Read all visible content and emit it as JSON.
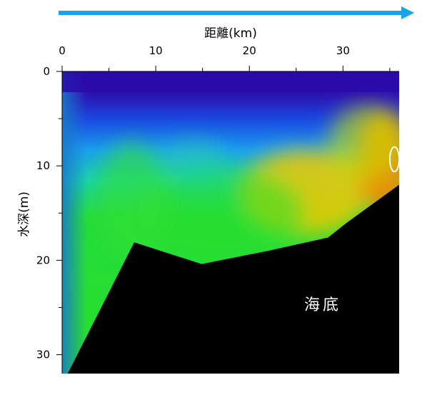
{
  "chart_data": {
    "type": "heatmap",
    "title": "",
    "xlabel": "距離(km)",
    "ylabel": "水深(m)",
    "x_axis_position": "top",
    "y_axis_inverted": true,
    "xlim": [
      0,
      36
    ],
    "ylim": [
      0,
      32
    ],
    "x_ticks": [
      0,
      10,
      20,
      30
    ],
    "y_ticks": [
      0,
      10,
      20,
      30
    ],
    "direction_arrow": {
      "color": "#1aa3e6",
      "direction": "right"
    },
    "seabed": {
      "label": "海底",
      "color": "#000000",
      "profile": [
        {
          "x": 0.6,
          "y": 32
        },
        {
          "x": 7.7,
          "y": 18.1
        },
        {
          "x": 14.9,
          "y": 20.4
        },
        {
          "x": 22.0,
          "y": 19.0
        },
        {
          "x": 28.4,
          "y": 17.6
        },
        {
          "x": 30.3,
          "y": 16.1
        },
        {
          "x": 36,
          "y": 12
        }
      ]
    },
    "contour_highlight": {
      "x": 35.5,
      "y": 9.3,
      "rx": 0.5,
      "ry": 1.3,
      "color": "#ffffff"
    },
    "color_scale": [
      "#2a0aa8",
      "#1a4ae0",
      "#1aa2f0",
      "#18d6a0",
      "#20e020",
      "#b8e000",
      "#f0b000",
      "#f08000"
    ],
    "field_blobs": [
      {
        "x": 26.0,
        "y": 12.8,
        "rx": 7.0,
        "ry": 4.5,
        "color": "#f2c800",
        "opacity": 0.85
      },
      {
        "x": 34.5,
        "y": 9.5,
        "rx": 3.0,
        "ry": 5.5,
        "color": "#f08a00",
        "opacity": 0.95
      },
      {
        "x": 32.5,
        "y": 7.5,
        "rx": 4.0,
        "ry": 4.0,
        "color": "#c8e000",
        "opacity": 0.6
      },
      {
        "x": 17.0,
        "y": 15.0,
        "rx": 9.0,
        "ry": 5.0,
        "color": "#28e028",
        "opacity": 0.55
      },
      {
        "x": 7.5,
        "y": 13.5,
        "rx": 4.0,
        "ry": 6.0,
        "color": "#30e030",
        "opacity": 0.6
      },
      {
        "x": 14.0,
        "y": 9.4,
        "rx": 3.5,
        "ry": 2.2,
        "color": "#2ad0a8",
        "opacity": 0.5
      }
    ]
  }
}
